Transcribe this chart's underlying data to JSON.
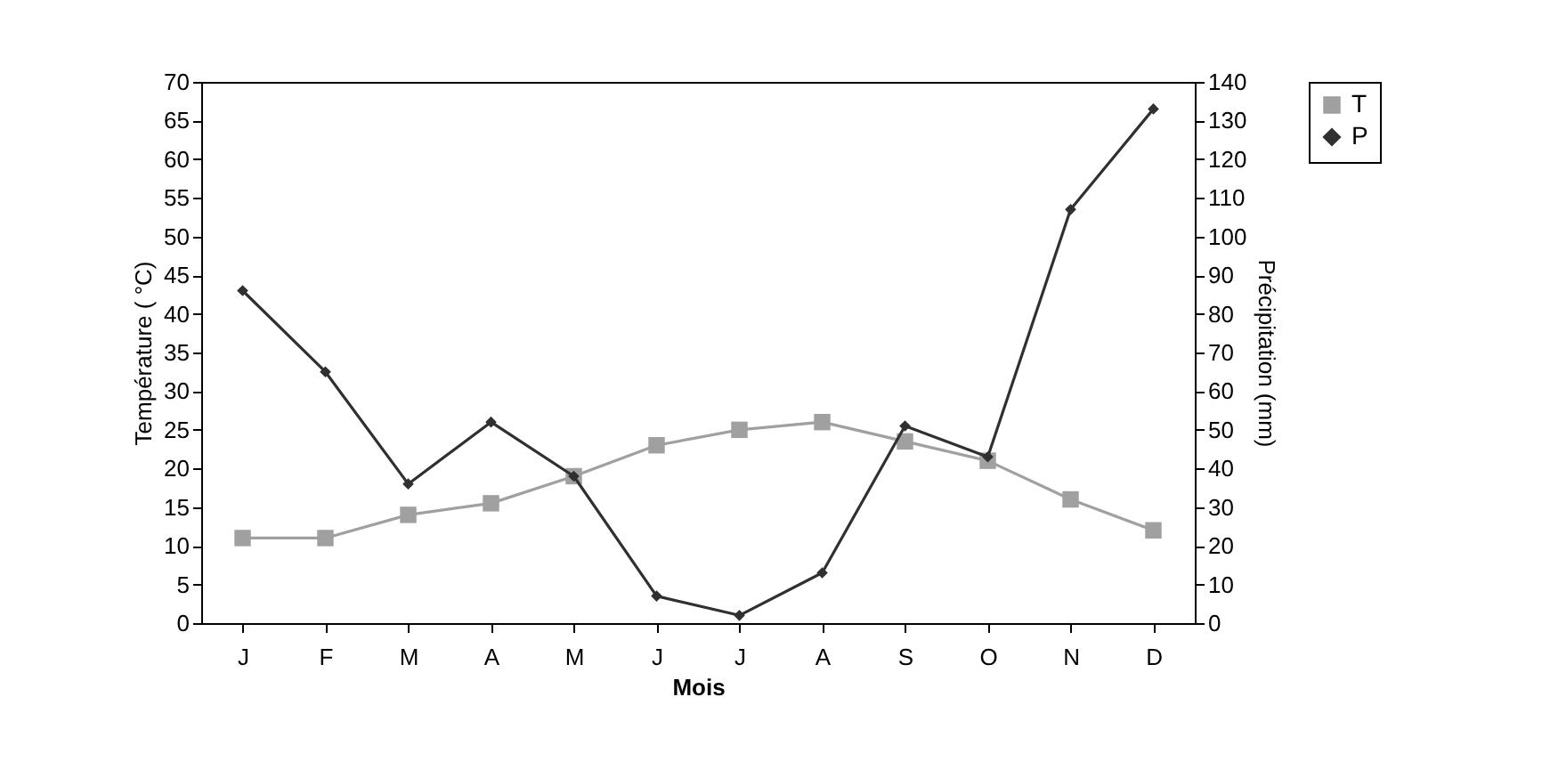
{
  "chart_data": {
    "type": "line",
    "xlabel": "Mois",
    "ylabel": "Température ( °C)",
    "y2label": "Précipitation (mm)",
    "categories": [
      "J",
      "F",
      "M",
      "A",
      "M",
      "J",
      "J",
      "A",
      "S",
      "O",
      "N",
      "D"
    ],
    "series": [
      {
        "name": "T",
        "color": "#a0a0a0",
        "marker": "square",
        "values": [
          11,
          11,
          14,
          15.5,
          19,
          23,
          25,
          26,
          23.5,
          21,
          16,
          12
        ]
      },
      {
        "name": "P",
        "color": "#303030",
        "marker": "diamond",
        "axis": "y2",
        "values": [
          86,
          65,
          36,
          52,
          38,
          7,
          2,
          13,
          51,
          43,
          107,
          133
        ]
      }
    ],
    "ylim": [
      0,
      70
    ],
    "yticks": [
      0,
      5,
      10,
      15,
      20,
      25,
      30,
      35,
      40,
      45,
      50,
      55,
      60,
      65,
      70
    ],
    "y2lim": [
      0,
      140
    ],
    "y2ticks": [
      0,
      10,
      20,
      30,
      40,
      50,
      60,
      70,
      80,
      90,
      100,
      110,
      120,
      130,
      140
    ],
    "grid": false,
    "legend": "right",
    "line_style": "solid"
  }
}
